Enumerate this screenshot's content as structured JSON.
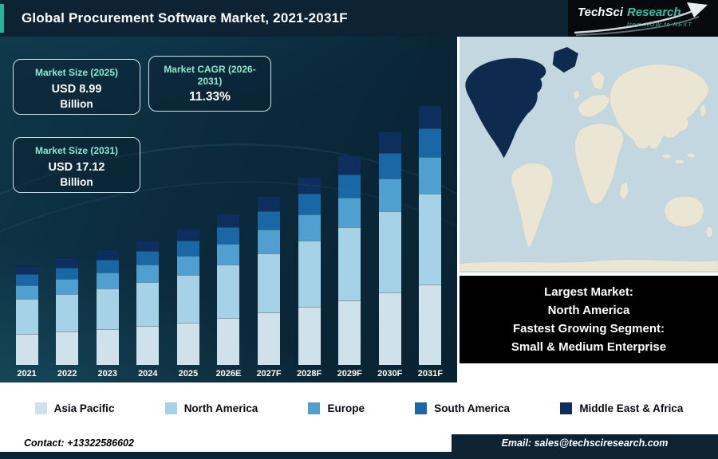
{
  "header": {
    "title": "Global Procurement Software Market, 2021-2031F",
    "logo": {
      "brand": "TechSci",
      "brand2": "Research",
      "tagline": "from NOW to NEXT"
    }
  },
  "stat_boxes": [
    {
      "label": "Market Size (2025)",
      "value": "USD 8.99",
      "unit": "Billion"
    },
    {
      "label": "Market CAGR (2026-2031)",
      "value": "11.33%",
      "unit": ""
    },
    {
      "label": "Market Size (2031)",
      "value": "USD 17.12",
      "unit": "Billion"
    }
  ],
  "chart_data": {
    "type": "bar",
    "stacked": true,
    "title": "Global Procurement Software Market, 2021-2031F",
    "unit": "USD Billion",
    "categories": [
      "2021",
      "2022",
      "2023",
      "2024",
      "2025",
      "2026E",
      "2027F",
      "2028F",
      "2029F",
      "2030F",
      "2031F"
    ],
    "series": [
      {
        "name": "Asia Pacific",
        "color": "#cfe2eb",
        "values": [
          2.04,
          2.19,
          2.36,
          2.56,
          2.79,
          3.1,
          3.45,
          3.85,
          4.28,
          4.77,
          5.31
        ]
      },
      {
        "name": "North America",
        "color": "#a6d2e8",
        "values": [
          2.3,
          2.47,
          2.67,
          2.89,
          3.15,
          3.5,
          3.9,
          4.34,
          4.83,
          5.38,
          5.99
        ]
      },
      {
        "name": "Europe",
        "color": "#4f9fd0",
        "values": [
          0.92,
          0.99,
          1.07,
          1.16,
          1.26,
          1.4,
          1.56,
          1.74,
          1.93,
          2.15,
          2.4
        ]
      },
      {
        "name": "South America",
        "color": "#1a67a6",
        "values": [
          0.72,
          0.78,
          0.84,
          0.91,
          0.99,
          1.1,
          1.23,
          1.37,
          1.52,
          1.69,
          1.88
        ]
      },
      {
        "name": "Middle East & Africa",
        "color": "#0e2f5e",
        "values": [
          0.59,
          0.64,
          0.69,
          0.74,
          0.81,
          0.9,
          1.0,
          1.12,
          1.24,
          1.38,
          1.54
        ]
      }
    ],
    "totals": [
      6.57,
      7.06,
      7.62,
      8.26,
      8.99,
      10.01,
      11.14,
      12.41,
      13.81,
      15.38,
      17.12
    ],
    "ylim": [
      0,
      17.12
    ],
    "grid": false,
    "legend_position": "bottom"
  },
  "map_note": {
    "lines": [
      "Largest Market:",
      "North America",
      "Fastest Growing Segment:",
      "Small & Medium Enterprise"
    ]
  },
  "footer": {
    "contact": "Contact: +13322586602",
    "email": "Email: sales@techsciresearch.com"
  },
  "colors": {
    "header_bg": "#0d2334",
    "accent_teal": "#27b39c",
    "stat_label": "#8ce8cf",
    "chart_bg_dark": "#0a2433",
    "note_bg": "#000000",
    "map_ocean": "#c2d7e0",
    "map_land": "#eae6d3",
    "map_highlight": "#0e2a4e"
  }
}
